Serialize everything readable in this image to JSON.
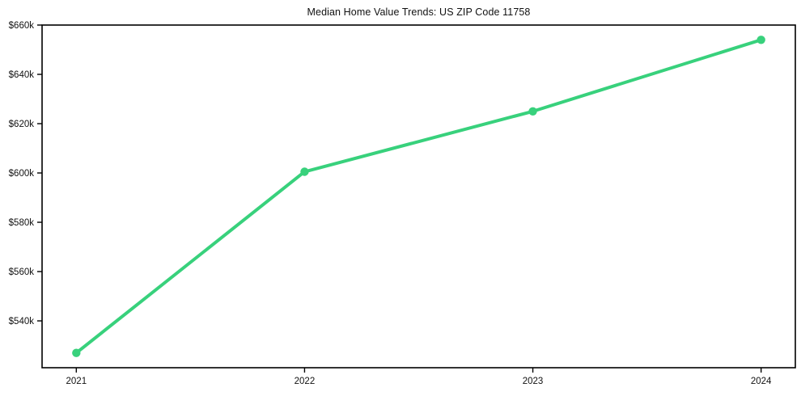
{
  "figure": {
    "background_color": "#ffffff",
    "frame_color": "#000000",
    "text_color": "#111111"
  },
  "chart_data": {
    "type": "line",
    "title": "Median Home Value Trends: US ZIP Code 11758",
    "xlabel": "",
    "ylabel": "",
    "x": [
      2021,
      2022,
      2023,
      2024
    ],
    "values": [
      527000,
      600500,
      625000,
      654000
    ],
    "xtick_labels": [
      "2021",
      "2022",
      "2023",
      "2024"
    ],
    "ytick_values": [
      540000,
      560000,
      580000,
      600000,
      620000,
      640000,
      660000
    ],
    "ytick_labels": [
      "$540k",
      "$560k",
      "$580k",
      "$600k",
      "$620k",
      "$640k",
      "$660k"
    ],
    "xlim": [
      2020.85,
      2024.15
    ],
    "ylim": [
      521000,
      660000
    ],
    "grid": false,
    "legend": "none",
    "line_color": "#38d17c",
    "marker": "circle",
    "marker_color": "#38d17c"
  }
}
